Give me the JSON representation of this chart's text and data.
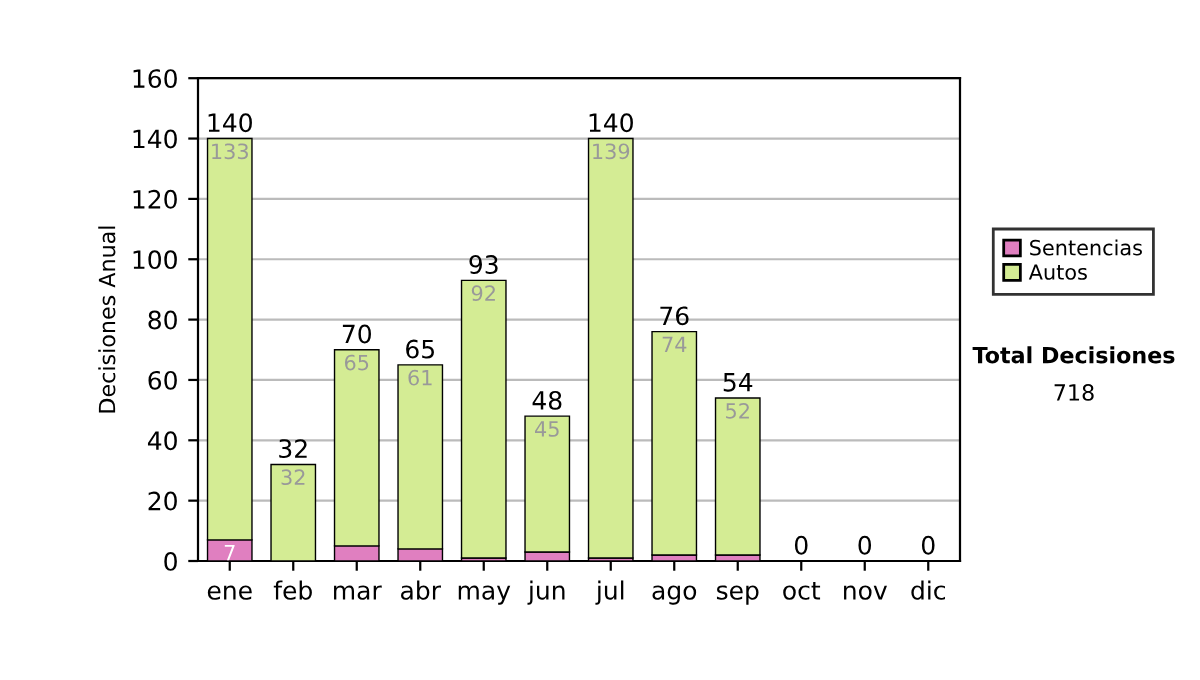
{
  "chart_data": {
    "type": "bar",
    "stacked": true,
    "ylabel": "Decisiones Anual",
    "categories": [
      "ene",
      "feb",
      "mar",
      "abr",
      "may",
      "jun",
      "jul",
      "ago",
      "sep",
      "oct",
      "nov",
      "dic"
    ],
    "series": [
      {
        "name": "Sentencias",
        "color": "#e07fc0",
        "values": [
          7,
          0,
          5,
          4,
          1,
          3,
          1,
          2,
          2,
          0,
          0,
          0
        ],
        "value_labels": [
          "7",
          null,
          null,
          null,
          null,
          null,
          null,
          null,
          null,
          null,
          null,
          null
        ]
      },
      {
        "name": "Autos",
        "color": "#d4ec94",
        "values": [
          133,
          32,
          65,
          61,
          92,
          45,
          139,
          74,
          52,
          0,
          0,
          0
        ],
        "value_labels": [
          "133",
          "32",
          "65",
          "61",
          "92",
          "45",
          "139",
          "74",
          "52",
          null,
          null,
          null
        ]
      }
    ],
    "totals": [
      "140",
      "32",
      "70",
      "65",
      "93",
      "48",
      "140",
      "76",
      "54",
      "0",
      "0",
      "0"
    ],
    "ylim": [
      0,
      160
    ],
    "yticks": [
      0,
      20,
      40,
      60,
      80,
      100,
      120,
      140,
      160
    ],
    "grid": "y",
    "legend": "right",
    "annotations": [
      "Total Decisiones",
      "718"
    ]
  }
}
